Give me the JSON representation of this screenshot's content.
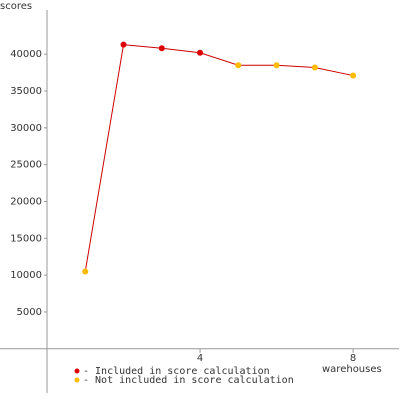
{
  "chart_data": {
    "type": "line",
    "y_label": "scores",
    "x_label": "warehouses",
    "x": [
      1,
      2,
      3,
      4,
      5,
      6,
      7,
      8
    ],
    "values": [
      10500,
      41300,
      40800,
      40200,
      38500,
      38500,
      38200,
      37100
    ],
    "line_color": "#cc0000",
    "point_colors": [
      "#ffbb00",
      "#dd0000",
      "#dd0000",
      "#dd0000",
      "#ffbb00",
      "#ffbb00",
      "#ffbb00",
      "#ffbb00"
    ],
    "xlim": [
      0,
      9.2
    ],
    "ylim": [
      -6000,
      46000
    ],
    "xticks": [
      4,
      8
    ],
    "yticks": [
      5000,
      10000,
      15000,
      20000,
      25000,
      30000,
      35000,
      40000
    ],
    "legend": [
      {
        "label": "- Included in score calculation",
        "color": "#dd0000"
      },
      {
        "label": "- Not included in score calculation",
        "color": "#ffbb00"
      }
    ]
  }
}
